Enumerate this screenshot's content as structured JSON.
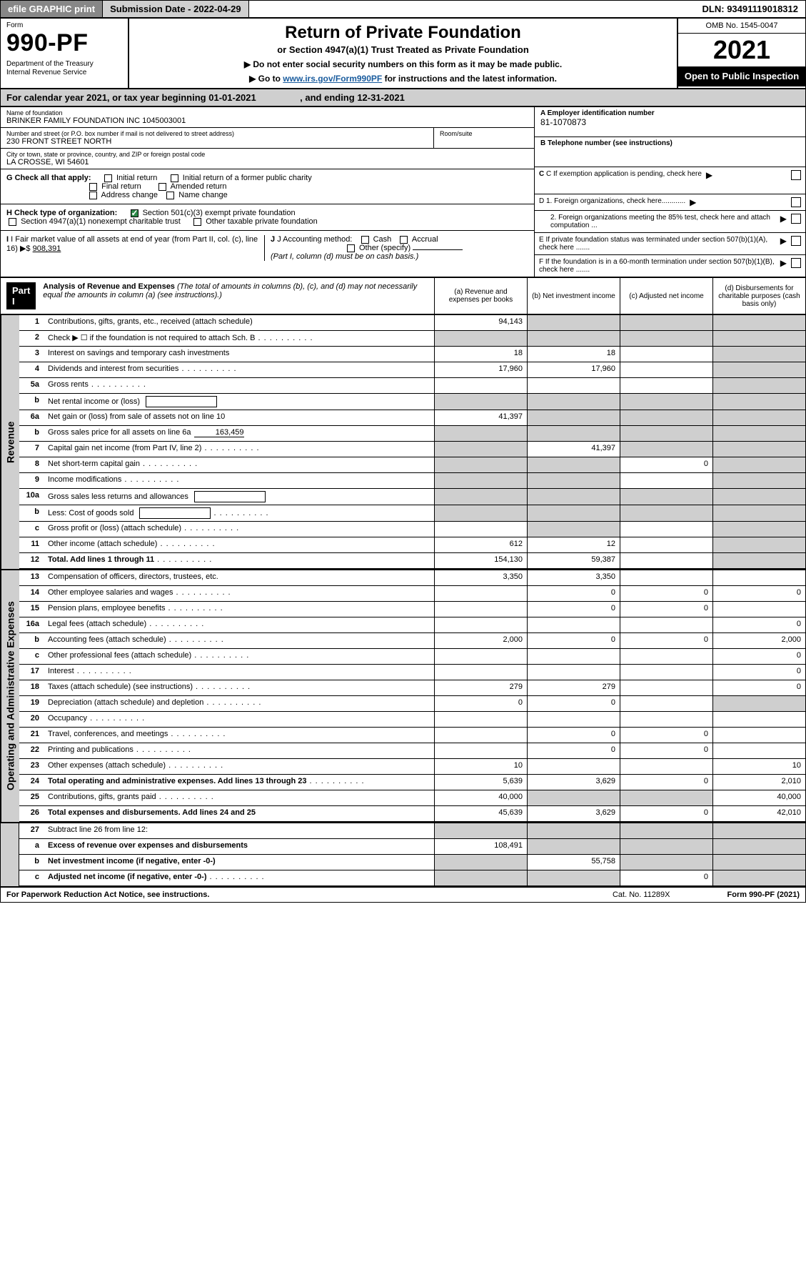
{
  "topbar": {
    "efile": "efile GRAPHIC print",
    "subdate_label": "Submission Date - 2022-04-29",
    "dln": "DLN: 93491119018312"
  },
  "header": {
    "form_label": "Form",
    "form_no": "990-PF",
    "dept": "Department of the Treasury\nInternal Revenue Service",
    "title": "Return of Private Foundation",
    "subtitle": "or Section 4947(a)(1) Trust Treated as Private Foundation",
    "note1": "▶ Do not enter social security numbers on this form as it may be made public.",
    "note2_pre": "▶ Go to ",
    "note2_link": "www.irs.gov/Form990PF",
    "note2_post": " for instructions and the latest information.",
    "omb": "OMB No. 1545-0047",
    "year": "2021",
    "openpub": "Open to Public Inspection"
  },
  "cal": {
    "text": "For calendar year 2021, or tax year beginning 01-01-2021 , and ending 12-31-2021",
    "begin": "01-01-2021",
    "end": "12-31-2021"
  },
  "info": {
    "name_lbl": "Name of foundation",
    "name": "BRINKER FAMILY FOUNDATION INC 1045003001",
    "addr_lbl": "Number and street (or P.O. box number if mail is not delivered to street address)",
    "addr": "230 FRONT STREET NORTH",
    "room_lbl": "Room/suite",
    "city_lbl": "City or town, state or province, country, and ZIP or foreign postal code",
    "city": "LA CROSSE, WI  54601",
    "ein_lbl": "A Employer identification number",
    "ein": "81-1070873",
    "tel_lbl": "B Telephone number (see instructions)",
    "c_lbl": "C If exemption application is pending, check here",
    "d1": "D 1. Foreign organizations, check here............",
    "d2": "2. Foreign organizations meeting the 85% test, check here and attach computation ...",
    "e_lbl": "E  If private foundation status was terminated under section 507(b)(1)(A), check here .......",
    "f_lbl": "F  If the foundation is in a 60-month termination under section 507(b)(1)(B), check here .......",
    "g_lbl": "G Check all that apply:",
    "g_opts": [
      "Initial return",
      "Initial return of a former public charity",
      "Final return",
      "Amended return",
      "Address change",
      "Name change"
    ],
    "h_lbl": "H Check type of organization:",
    "h_opt1": "Section 501(c)(3) exempt private foundation",
    "h_opt2": "Section 4947(a)(1) nonexempt charitable trust",
    "h_opt3": "Other taxable private foundation",
    "i_lbl": "I Fair market value of all assets at end of year (from Part II, col. (c), line 16)",
    "i_val": "908,391",
    "j_lbl": "J Accounting method:",
    "j_opts": [
      "Cash",
      "Accrual",
      "Other (specify)"
    ],
    "j_note": "(Part I, column (d) must be on cash basis.)"
  },
  "part": {
    "hdr": "Part I",
    "title": "Analysis of Revenue and Expenses",
    "note": "(The total of amounts in columns (b), (c), and (d) may not necessarily equal the amounts in column (a) (see instructions).)",
    "col_a": "(a)   Revenue and expenses per books",
    "col_b": "(b)   Net investment income",
    "col_c": "(c)   Adjusted net income",
    "col_d": "(d)   Disbursements for charitable purposes (cash basis only)"
  },
  "sections": {
    "revenue": "Revenue",
    "opex": "Operating and Administrative Expenses"
  },
  "rows": [
    {
      "n": "1",
      "lbl": "Contributions, gifts, grants, etc., received (attach schedule)",
      "a": "94,143",
      "b": "",
      "c": "",
      "d": "",
      "shadeB": true,
      "shadeC": true,
      "shadeD": true
    },
    {
      "n": "2",
      "lbl": "Check ▶ ☐  if the foundation is not required to attach Sch. B",
      "a": "",
      "b": "",
      "c": "",
      "d": "",
      "shadeA": true,
      "shadeB": true,
      "shadeC": true,
      "shadeD": true,
      "dots": true
    },
    {
      "n": "3",
      "lbl": "Interest on savings and temporary cash investments",
      "a": "18",
      "b": "18",
      "c": "",
      "d": "",
      "shadeD": true
    },
    {
      "n": "4",
      "lbl": "Dividends and interest from securities",
      "a": "17,960",
      "b": "17,960",
      "c": "",
      "d": "",
      "shadeD": true,
      "dots": true
    },
    {
      "n": "5a",
      "lbl": "Gross rents",
      "a": "",
      "b": "",
      "c": "",
      "d": "",
      "shadeD": true,
      "dots": true
    },
    {
      "n": "b",
      "lbl": "Net rental income or (loss)",
      "a": "",
      "b": "",
      "c": "",
      "d": "",
      "shadeA": true,
      "shadeB": true,
      "shadeC": true,
      "shadeD": true,
      "inlineBox": true
    },
    {
      "n": "6a",
      "lbl": "Net gain or (loss) from sale of assets not on line 10",
      "a": "41,397",
      "b": "",
      "c": "",
      "d": "",
      "shadeB": true,
      "shadeC": true,
      "shadeD": true
    },
    {
      "n": "b",
      "lbl": "Gross sales price for all assets on line 6a",
      "inline": "163,459",
      "a": "",
      "b": "",
      "c": "",
      "d": "",
      "shadeA": true,
      "shadeB": true,
      "shadeC": true,
      "shadeD": true
    },
    {
      "n": "7",
      "lbl": "Capital gain net income (from Part IV, line 2)",
      "a": "",
      "b": "41,397",
      "c": "",
      "d": "",
      "shadeA": true,
      "shadeC": true,
      "shadeD": true,
      "dots": true
    },
    {
      "n": "8",
      "lbl": "Net short-term capital gain",
      "a": "",
      "b": "",
      "c": "0",
      "d": "",
      "shadeA": true,
      "shadeB": true,
      "shadeD": true,
      "dots": true
    },
    {
      "n": "9",
      "lbl": "Income modifications",
      "a": "",
      "b": "",
      "c": "",
      "d": "",
      "shadeA": true,
      "shadeB": true,
      "shadeD": true,
      "dots": true
    },
    {
      "n": "10a",
      "lbl": "Gross sales less returns and allowances",
      "a": "",
      "b": "",
      "c": "",
      "d": "",
      "shadeA": true,
      "shadeB": true,
      "shadeC": true,
      "shadeD": true,
      "inlineBox": true
    },
    {
      "n": "b",
      "lbl": "Less: Cost of goods sold",
      "a": "",
      "b": "",
      "c": "",
      "d": "",
      "shadeA": true,
      "shadeB": true,
      "shadeC": true,
      "shadeD": true,
      "inlineBox": true,
      "dots": true
    },
    {
      "n": "c",
      "lbl": "Gross profit or (loss) (attach schedule)",
      "a": "",
      "b": "",
      "c": "",
      "d": "",
      "shadeB": true,
      "shadeD": true,
      "dots": true
    },
    {
      "n": "11",
      "lbl": "Other income (attach schedule)",
      "a": "612",
      "b": "12",
      "c": "",
      "d": "",
      "shadeD": true,
      "dots": true
    },
    {
      "n": "12",
      "lbl": "Total. Add lines 1 through 11",
      "bold": true,
      "a": "154,130",
      "b": "59,387",
      "c": "",
      "d": "",
      "shadeD": true,
      "dots": true
    }
  ],
  "opex_rows": [
    {
      "n": "13",
      "lbl": "Compensation of officers, directors, trustees, etc.",
      "a": "3,350",
      "b": "3,350",
      "c": "",
      "d": ""
    },
    {
      "n": "14",
      "lbl": "Other employee salaries and wages",
      "a": "",
      "b": "0",
      "c": "0",
      "d": "0",
      "dots": true
    },
    {
      "n": "15",
      "lbl": "Pension plans, employee benefits",
      "a": "",
      "b": "0",
      "c": "0",
      "d": "",
      "dots": true
    },
    {
      "n": "16a",
      "lbl": "Legal fees (attach schedule)",
      "a": "",
      "b": "",
      "c": "",
      "d": "0",
      "dots": true
    },
    {
      "n": "b",
      "lbl": "Accounting fees (attach schedule)",
      "a": "2,000",
      "b": "0",
      "c": "0",
      "d": "2,000",
      "dots": true
    },
    {
      "n": "c",
      "lbl": "Other professional fees (attach schedule)",
      "a": "",
      "b": "",
      "c": "",
      "d": "0",
      "dots": true
    },
    {
      "n": "17",
      "lbl": "Interest",
      "a": "",
      "b": "",
      "c": "",
      "d": "0",
      "dots": true
    },
    {
      "n": "18",
      "lbl": "Taxes (attach schedule) (see instructions)",
      "a": "279",
      "b": "279",
      "c": "",
      "d": "0",
      "dots": true
    },
    {
      "n": "19",
      "lbl": "Depreciation (attach schedule) and depletion",
      "a": "0",
      "b": "0",
      "c": "",
      "d": "",
      "shadeD": true,
      "dots": true
    },
    {
      "n": "20",
      "lbl": "Occupancy",
      "a": "",
      "b": "",
      "c": "",
      "d": "",
      "dots": true
    },
    {
      "n": "21",
      "lbl": "Travel, conferences, and meetings",
      "a": "",
      "b": "0",
      "c": "0",
      "d": "",
      "dots": true
    },
    {
      "n": "22",
      "lbl": "Printing and publications",
      "a": "",
      "b": "0",
      "c": "0",
      "d": "",
      "dots": true
    },
    {
      "n": "23",
      "lbl": "Other expenses (attach schedule)",
      "a": "10",
      "b": "",
      "c": "",
      "d": "10",
      "dots": true
    },
    {
      "n": "24",
      "lbl": "Total operating and administrative expenses. Add lines 13 through 23",
      "bold": true,
      "a": "5,639",
      "b": "3,629",
      "c": "0",
      "d": "2,010",
      "dots": true
    },
    {
      "n": "25",
      "lbl": "Contributions, gifts, grants paid",
      "a": "40,000",
      "b": "",
      "c": "",
      "d": "40,000",
      "shadeB": true,
      "shadeC": true,
      "dots": true
    },
    {
      "n": "26",
      "lbl": "Total expenses and disbursements. Add lines 24 and 25",
      "bold": true,
      "a": "45,639",
      "b": "3,629",
      "c": "0",
      "d": "42,010"
    }
  ],
  "bottom_rows": [
    {
      "n": "27",
      "lbl": "Subtract line 26 from line 12:",
      "a": "",
      "b": "",
      "c": "",
      "d": "",
      "shadeA": true,
      "shadeB": true,
      "shadeC": true,
      "shadeD": true
    },
    {
      "n": "a",
      "lbl": "Excess of revenue over expenses and disbursements",
      "bold": true,
      "a": "108,491",
      "b": "",
      "c": "",
      "d": "",
      "shadeB": true,
      "shadeC": true,
      "shadeD": true
    },
    {
      "n": "b",
      "lbl": "Net investment income (if negative, enter -0-)",
      "bold": true,
      "a": "",
      "b": "55,758",
      "c": "",
      "d": "",
      "shadeA": true,
      "shadeC": true,
      "shadeD": true
    },
    {
      "n": "c",
      "lbl": "Adjusted net income (if negative, enter -0-)",
      "bold": true,
      "a": "",
      "b": "",
      "c": "0",
      "d": "",
      "shadeA": true,
      "shadeB": true,
      "shadeD": true,
      "dots": true
    }
  ],
  "footer": {
    "left": "For Paperwork Reduction Act Notice, see instructions.",
    "mid": "Cat. No. 11289X",
    "right": "Form 990-PF (2021)"
  },
  "colors": {
    "gray": "#cfcfcf",
    "darkgray": "#878787",
    "black": "#000000",
    "link": "#1a5c9e",
    "checked": "#2e8b4a"
  }
}
